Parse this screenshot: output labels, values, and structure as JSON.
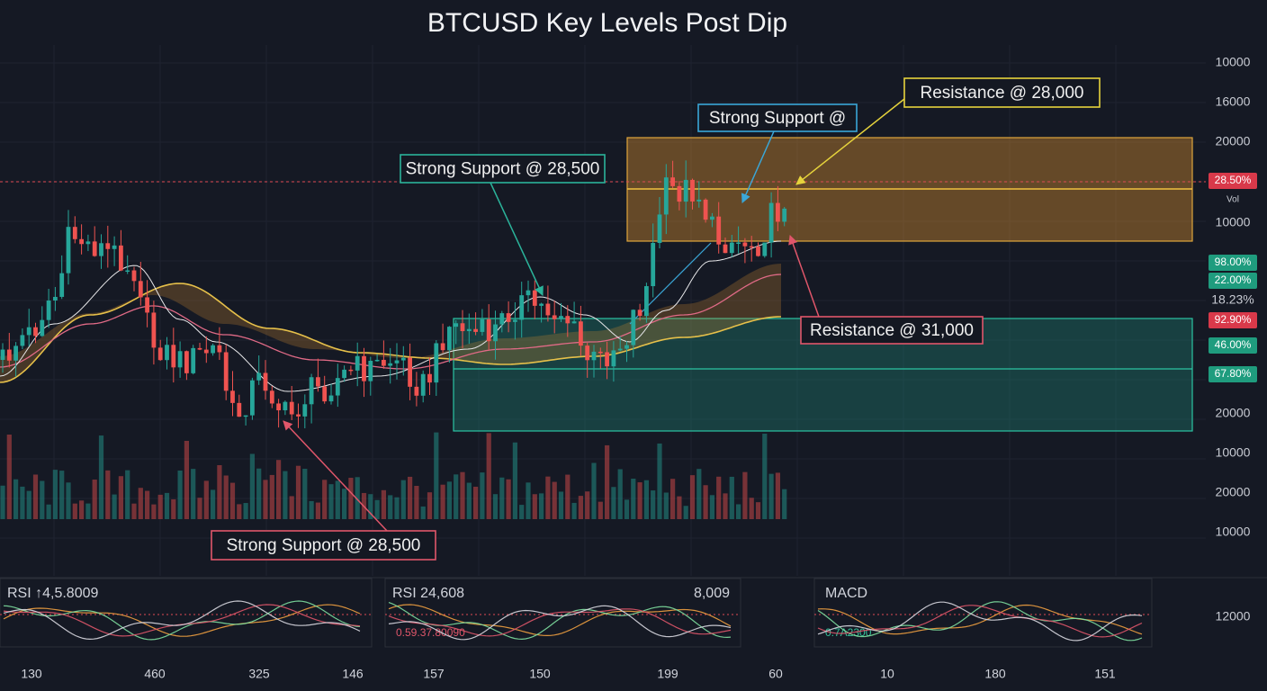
{
  "title": "BTCUSD Key Levels Post Dip",
  "price_axis": [
    {
      "label": "10000",
      "kind": "text"
    },
    {
      "label": "16000",
      "kind": "text"
    },
    {
      "label": "20000",
      "kind": "text"
    },
    {
      "label": "28.50%",
      "kind": "badge-red"
    },
    {
      "label": "Vol",
      "kind": "small"
    },
    {
      "label": "10000",
      "kind": "text"
    },
    {
      "label": "98.00%",
      "kind": "badge-green"
    },
    {
      "label": "22.00%",
      "kind": "badge-green"
    },
    {
      "label": "18.23%",
      "kind": "text"
    },
    {
      "label": "92.90%",
      "kind": "badge-red"
    },
    {
      "label": "46.00%",
      "kind": "badge-green"
    },
    {
      "label": "67.80%",
      "kind": "badge-green"
    },
    {
      "label": "20000",
      "kind": "text"
    },
    {
      "label": "10000",
      "kind": "text"
    },
    {
      "label": "20000",
      "kind": "text"
    },
    {
      "label": "10000",
      "kind": "text"
    },
    {
      "label": "12000",
      "kind": "text"
    }
  ],
  "annotations": [
    {
      "text": "Resistance @ 28,000",
      "color": "#e6d33c"
    },
    {
      "text": "Strong Support @",
      "color": "#3aa7d8"
    },
    {
      "text": "Strong Support @ 28,500",
      "color": "#2bb39a"
    },
    {
      "text": "Resistance @ 31,000",
      "color": "#e0566a"
    },
    {
      "text": "Strong Support @ 28,500",
      "color": "#e0566a"
    }
  ],
  "indicators": [
    {
      "label": "RSI ↑4,5.8009"
    },
    {
      "label": "RSI 24,608",
      "value": "8,009",
      "note": "0.59.37.80090"
    },
    {
      "label": "MACD",
      "note": "0.7A2300"
    }
  ],
  "x_axis": [
    "130",
    "460",
    "325",
    "146",
    "157",
    "150",
    "199",
    "60",
    "10",
    "180",
    "151"
  ]
}
